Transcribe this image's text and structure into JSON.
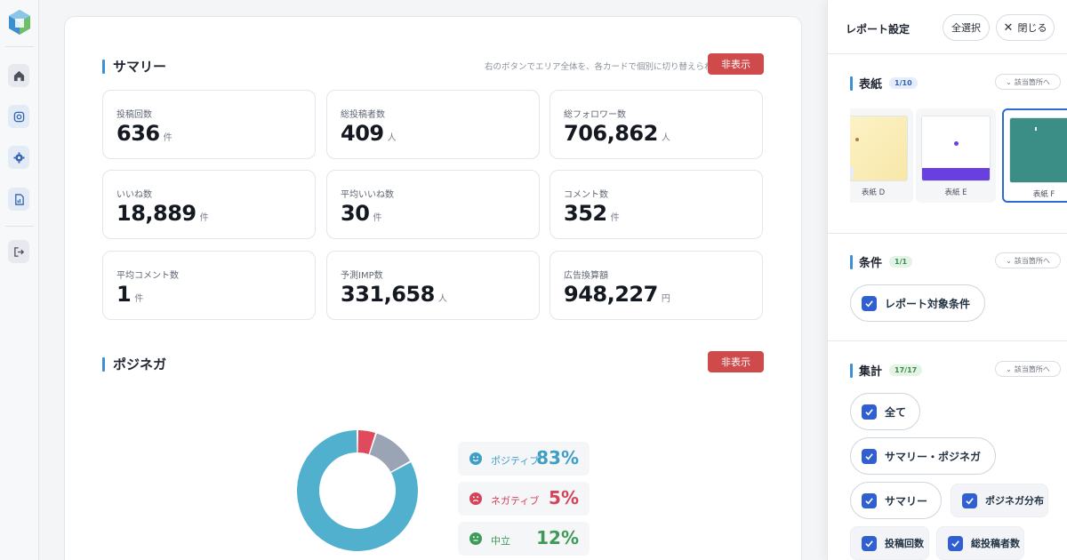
{
  "sidebar": {
    "icons": [
      "logo-icon",
      "home-icon",
      "instagram-icon",
      "settings-icon",
      "report-icon",
      "logout-icon"
    ]
  },
  "summary": {
    "title": "サマリー",
    "hint": "右のボタンでエリア全体を、各カードで個別に切り替えられます",
    "hide_label": "非表示",
    "cards": [
      {
        "label": "投稿回数",
        "value": "636",
        "unit": "件"
      },
      {
        "label": "総投稿者数",
        "value": "409",
        "unit": "人"
      },
      {
        "label": "総フォロワー数",
        "value": "706,862",
        "unit": "人"
      },
      {
        "label": "いいね数",
        "value": "18,889",
        "unit": "件"
      },
      {
        "label": "平均いいね数",
        "value": "30",
        "unit": "件"
      },
      {
        "label": "コメント数",
        "value": "352",
        "unit": "件"
      },
      {
        "label": "平均コメント数",
        "value": "1",
        "unit": "件"
      },
      {
        "label": "予測IMP数",
        "value": "331,658",
        "unit": "人"
      },
      {
        "label": "広告換算額",
        "value": "948,227",
        "unit": "円"
      }
    ]
  },
  "posinega": {
    "title": "ポジネガ",
    "hide_label": "非表示",
    "items": [
      {
        "name": "ポジティブ",
        "pct": "83%",
        "value": 83,
        "color": "#52b0cf"
      },
      {
        "name": "ネガティブ",
        "pct": "5%",
        "value": 5,
        "color": "#df4a5c"
      },
      {
        "name": "中立",
        "pct": "12%",
        "value": 12,
        "color": "#9aa4b5"
      }
    ],
    "label_colors": [
      "#3f9ec6",
      "#d6425a",
      "#3d9a58"
    ]
  },
  "panel": {
    "title": "レポート設定",
    "select_all": "全選択",
    "close": "閉じる",
    "jump_label": "該当箇所へ",
    "cover": {
      "title": "表紙",
      "badge": "1/10",
      "thumbs": [
        {
          "label": "表紙 D"
        },
        {
          "label": "表紙 E"
        },
        {
          "label": "表紙 F"
        }
      ]
    },
    "conditions": {
      "title": "条件",
      "badge": "1/1",
      "items": [
        "レポート対象条件"
      ]
    },
    "aggregate": {
      "title": "集計",
      "badge": "17/17",
      "items": [
        "全て",
        "サマリー・ポジネガ",
        "サマリー",
        "ポジネガ分布",
        "投稿回数",
        "総投稿者数"
      ]
    }
  }
}
